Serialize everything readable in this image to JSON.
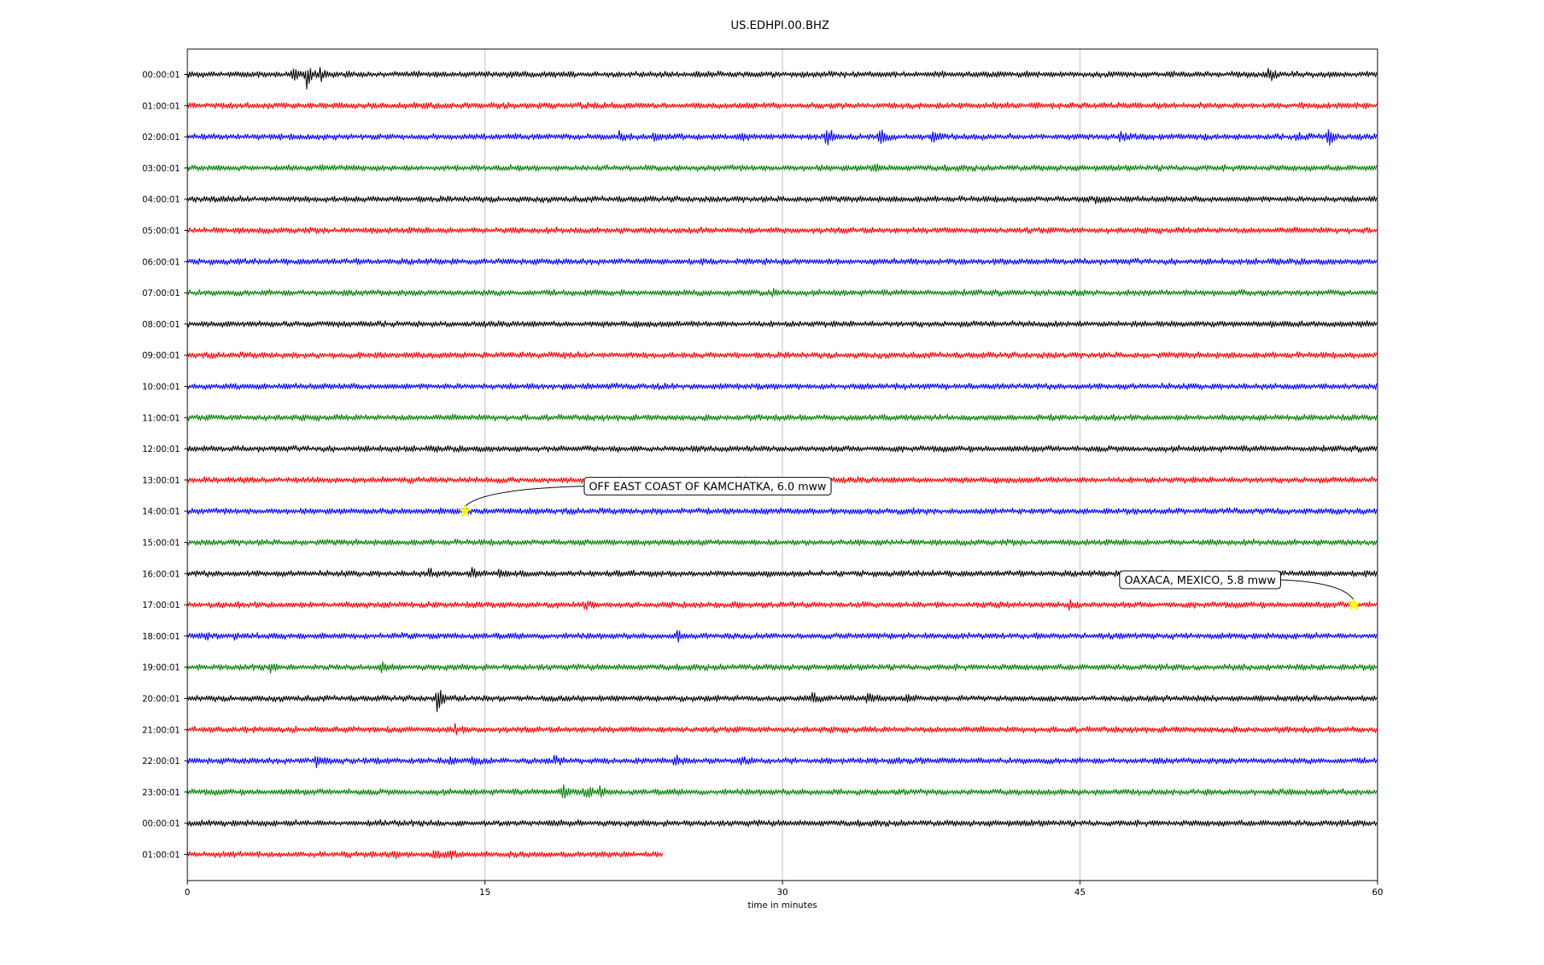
{
  "chart_data": {
    "type": "line",
    "title": "US.EDHPI.00.BHZ",
    "xlabel": "time in minutes",
    "ylabel": "",
    "xlim": [
      0,
      60
    ],
    "x_ticks": [
      "0",
      "15",
      "30",
      "45",
      "60"
    ],
    "x_tick_values": [
      0,
      15,
      30,
      45,
      60
    ],
    "grid": "vertical",
    "colors": [
      "#000000",
      "#ff0000",
      "#0000ff",
      "#008000"
    ],
    "rows": [
      {
        "label": "00:00:01",
        "color": "#000000",
        "end": 60,
        "bursts": [
          [
            5.3,
            10
          ],
          [
            6,
            14
          ],
          [
            6.7,
            7
          ],
          [
            54.5,
            8
          ]
        ]
      },
      {
        "label": "01:00:01",
        "color": "#ff0000",
        "end": 60,
        "bursts": []
      },
      {
        "label": "02:00:01",
        "color": "#0000ff",
        "end": 60,
        "bursts": [
          [
            21.8,
            8
          ],
          [
            23.5,
            6
          ],
          [
            27.9,
            5
          ],
          [
            32.2,
            12
          ],
          [
            34.9,
            10
          ],
          [
            37.6,
            6
          ],
          [
            47,
            8
          ],
          [
            55.9,
            6
          ],
          [
            57.5,
            16
          ]
        ]
      },
      {
        "label": "03:00:01",
        "color": "#008000",
        "end": 60,
        "bursts": [
          [
            34.6,
            6
          ]
        ]
      },
      {
        "label": "04:00:01",
        "color": "#000000",
        "end": 60,
        "bursts": [
          [
            1.2,
            3
          ],
          [
            45.8,
            5
          ]
        ]
      },
      {
        "label": "05:00:01",
        "color": "#ff0000",
        "end": 60,
        "bursts": []
      },
      {
        "label": "06:00:01",
        "color": "#0000ff",
        "end": 60,
        "bursts": []
      },
      {
        "label": "07:00:01",
        "color": "#008000",
        "end": 60,
        "bursts": [
          [
            29.5,
            3
          ]
        ]
      },
      {
        "label": "08:00:01",
        "color": "#000000",
        "end": 60,
        "bursts": []
      },
      {
        "label": "09:00:01",
        "color": "#ff0000",
        "end": 60,
        "bursts": []
      },
      {
        "label": "10:00:01",
        "color": "#0000ff",
        "end": 60,
        "bursts": []
      },
      {
        "label": "11:00:01",
        "color": "#008000",
        "end": 60,
        "bursts": []
      },
      {
        "label": "12:00:01",
        "color": "#000000",
        "end": 60,
        "bursts": []
      },
      {
        "label": "13:00:01",
        "color": "#ff0000",
        "end": 60,
        "bursts": []
      },
      {
        "label": "14:00:01",
        "color": "#0000ff",
        "end": 60,
        "bursts": [
          [
            23.8,
            3
          ]
        ]
      },
      {
        "label": "15:00:01",
        "color": "#008000",
        "end": 60,
        "bursts": []
      },
      {
        "label": "16:00:01",
        "color": "#000000",
        "end": 60,
        "bursts": [
          [
            12.2,
            5
          ],
          [
            14.4,
            6
          ],
          [
            15.7,
            4
          ]
        ]
      },
      {
        "label": "17:00:01",
        "color": "#ff0000",
        "end": 60,
        "bursts": [
          [
            20,
            5
          ],
          [
            44.5,
            6
          ]
        ]
      },
      {
        "label": "18:00:01",
        "color": "#0000ff",
        "end": 60,
        "bursts": [
          [
            0.9,
            5
          ],
          [
            2.4,
            4
          ],
          [
            24.7,
            5
          ]
        ]
      },
      {
        "label": "19:00:01",
        "color": "#008000",
        "end": 60,
        "bursts": [
          [
            4.2,
            4
          ],
          [
            9.8,
            5
          ],
          [
            56,
            3
          ]
        ]
      },
      {
        "label": "20:00:01",
        "color": "#000000",
        "end": 60,
        "bursts": [
          [
            12.6,
            16
          ],
          [
            31.5,
            8
          ],
          [
            34.3,
            6
          ],
          [
            36.3,
            4
          ]
        ]
      },
      {
        "label": "21:00:01",
        "color": "#ff0000",
        "end": 60,
        "bursts": [
          [
            13.5,
            7
          ]
        ]
      },
      {
        "label": "22:00:01",
        "color": "#0000ff",
        "end": 60,
        "bursts": [
          [
            6.5,
            10
          ],
          [
            13.2,
            5
          ],
          [
            14.3,
            5
          ],
          [
            18.5,
            5
          ],
          [
            24.6,
            6
          ],
          [
            27.9,
            5
          ]
        ]
      },
      {
        "label": "23:00:01",
        "color": "#008000",
        "end": 60,
        "bursts": [
          [
            18.9,
            20
          ],
          [
            20.1,
            8
          ],
          [
            20.7,
            6
          ]
        ]
      },
      {
        "label": "00:00:01",
        "color": "#000000",
        "end": 60,
        "bursts": [
          [
            9.5,
            3
          ]
        ]
      },
      {
        "label": "01:00:01",
        "color": "#ff0000",
        "end": 24,
        "bursts": [
          [
            10.4,
            6
          ],
          [
            12.5,
            5
          ],
          [
            13.3,
            5
          ]
        ]
      }
    ],
    "events": [
      {
        "label": "OFF EAST COAST OF KAMCHATKA, 6.0 mww",
        "row": 14,
        "minute": 14.0,
        "box_minute": 20.0,
        "box_row": 13.2
      },
      {
        "label": "OAXACA, MEXICO, 5.8 mww",
        "row": 17,
        "minute": 58.8,
        "box_minute": 47.0,
        "box_row": 16.2
      }
    ]
  }
}
